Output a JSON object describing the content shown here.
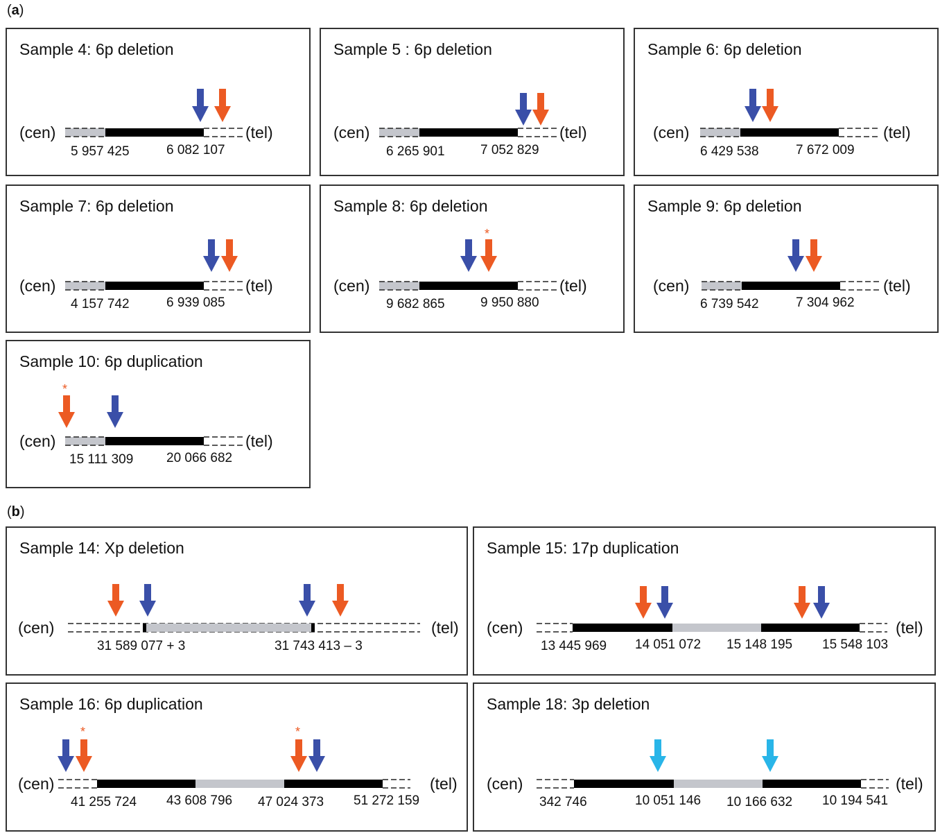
{
  "section_labels": {
    "a": "a",
    "b": "b"
  },
  "colors": {
    "blue": "#3a4fa8",
    "orange": "#ec5a23",
    "cyan": "#29b5e8",
    "grey": "#c4c6cc",
    "black": "#000000"
  },
  "common": {
    "cen": "(cen)",
    "tel": "(tel)",
    "star": "*"
  },
  "panels": [
    {
      "title": "Sample 4: 6p deletion",
      "coords": [
        "5 957 425",
        "6 082 107"
      ]
    },
    {
      "title": "Sample 5 : 6p deletion",
      "coords": [
        "6 265 901",
        "7 052 829"
      ]
    },
    {
      "title": "Sample 6: 6p deletion",
      "coords": [
        "6 429 538",
        "7 672 009"
      ]
    },
    {
      "title": "Sample 7: 6p deletion",
      "coords": [
        "4 157 742",
        "6 939 085"
      ]
    },
    {
      "title": "Sample 8: 6p deletion",
      "coords": [
        "9 682 865",
        "9 950 880"
      ]
    },
    {
      "title": "Sample 9: 6p deletion",
      "coords": [
        "6 739 542",
        "7 304 962"
      ]
    },
    {
      "title": "Sample 10: 6p duplication",
      "coords": [
        "15 111 309",
        "20 066 682"
      ]
    },
    {
      "title": "Sample 14: Xp deletion",
      "coords": [
        "31 589 077 + 3",
        "31 743 413 – 3"
      ]
    },
    {
      "title": "Sample 15: 17p duplication",
      "coords": [
        "13 445 969",
        "14  051 072",
        "15 148 195",
        "15 548 103"
      ]
    },
    {
      "title": "Sample 16: 6p duplication",
      "coords": [
        "41 255 724",
        "43 608 796",
        "47 024 373",
        "51 272 159"
      ]
    },
    {
      "title": "Sample 18: 3p deletion",
      "coords": [
        "342 746",
        "10 051 146",
        "10 166 632",
        "10 194 541"
      ]
    }
  ]
}
